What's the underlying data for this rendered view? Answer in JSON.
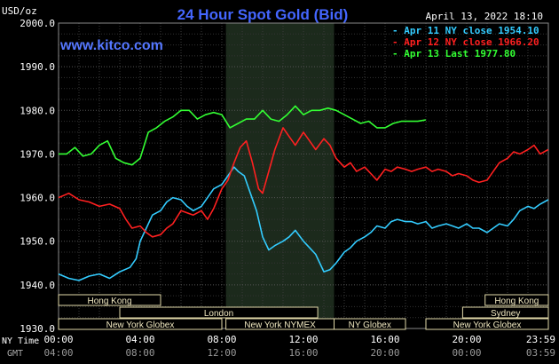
{
  "header": {
    "unit": "USD/oz",
    "title": "24 Hour Spot Gold (Bid)",
    "site": "www.kitco.com",
    "date": "April 13, 2022 18:10"
  },
  "legend": [
    {
      "text": "Apr 11 NY close 1954.10",
      "color": "#33ccff"
    },
    {
      "text": "Apr 12 NY close 1966.20",
      "color": "#ff2020"
    },
    {
      "text": "Apr 13 Last 1977.80",
      "color": "#33ff33"
    }
  ],
  "axis_labels": {
    "ny_time": "NY Time",
    "gmt": "GMT"
  },
  "sessions": [
    {
      "label": "Hong Kong",
      "start_h": 0.0,
      "end_h": 5.0,
      "row": 0
    },
    {
      "label": "London",
      "start_h": 3.0,
      "end_h": 12.7,
      "row": 1
    },
    {
      "label": "New York Globex",
      "start_h": 0.0,
      "end_h": 8.0,
      "row": 2
    },
    {
      "label": "New York NYMEX",
      "start_h": 8.2,
      "end_h": 13.5,
      "row": 2
    },
    {
      "label": "NY Globex",
      "start_h": 13.5,
      "end_h": 17.0,
      "row": 2
    },
    {
      "label": "Hong Kong",
      "start_h": 20.9,
      "end_h": 24.0,
      "row": 0
    },
    {
      "label": "Sydney",
      "start_h": 19.8,
      "end_h": 24.0,
      "row": 1
    },
    {
      "label": "New York Globex",
      "start_h": 18.0,
      "end_h": 24.0,
      "row": 2
    }
  ],
  "chart_data": {
    "type": "line",
    "title": "24 Hour Spot Gold (Bid)",
    "ylabel": "USD/oz",
    "ylim": [
      1930,
      2000
    ],
    "xlim": [
      0,
      24
    ],
    "x_ticks_ny": [
      "00:00",
      "04:00",
      "08:00",
      "12:00",
      "16:00",
      "20:00",
      "23:59"
    ],
    "x_ticks_gmt": [
      "04:00",
      "08:00",
      "12:00",
      "16:00",
      "20:00",
      "00:00",
      "03:59"
    ],
    "y_ticks": [
      "1930.0",
      "1940.0",
      "1950.0",
      "1960.0",
      "1970.0",
      "1980.0",
      "1990.0",
      "2000.0"
    ],
    "y_tick_values": [
      1930,
      1940,
      1950,
      1960,
      1970,
      1980,
      1990,
      2000
    ],
    "grid": true,
    "shaded_region": [
      8.2,
      13.5
    ],
    "series": [
      {
        "name": "Apr 11 NY close 1954.10",
        "color": "#33ccff",
        "x": [
          0,
          0.5,
          1,
          1.5,
          2,
          2.5,
          3,
          3.5,
          3.8,
          4,
          4.3,
          4.6,
          5,
          5.3,
          5.6,
          6,
          6.3,
          6.6,
          7,
          7.3,
          7.6,
          8,
          8.3,
          8.6,
          8.8,
          9.1,
          9.4,
          9.7,
          10,
          10.3,
          10.6,
          11,
          11.3,
          11.6,
          12,
          12.3,
          12.6,
          13,
          13.3,
          13.6,
          14,
          14.3,
          14.6,
          15,
          15.3,
          15.6,
          16,
          16.3,
          16.6,
          17,
          17.3,
          17.6,
          18,
          18.3,
          18.6,
          19,
          19.3,
          19.6,
          20,
          20.3,
          20.6,
          21,
          21.3,
          21.6,
          22,
          22.3,
          22.6,
          23,
          23.3,
          23.6,
          23.99
        ],
        "y": [
          1942.5,
          1941.5,
          1941,
          1942,
          1942.5,
          1941.5,
          1943,
          1944,
          1946,
          1950,
          1953,
          1956,
          1957,
          1959,
          1960,
          1959.5,
          1958,
          1957,
          1958,
          1960,
          1962,
          1963,
          1965,
          1967,
          1966,
          1965,
          1961,
          1957,
          1951,
          1948,
          1949,
          1950,
          1951,
          1952.5,
          1950,
          1948.5,
          1947,
          1943,
          1943.5,
          1945,
          1947.5,
          1948.5,
          1950,
          1951,
          1952,
          1953.5,
          1953,
          1954.5,
          1955,
          1954.5,
          1954.5,
          1954,
          1954.5,
          1953,
          1953.5,
          1954,
          1953.5,
          1953,
          1954,
          1953,
          1953,
          1952,
          1953,
          1954,
          1953.5,
          1955,
          1957,
          1958,
          1957.5,
          1958.5,
          1959.5
        ]
      },
      {
        "name": "Apr 12 NY close 1966.20",
        "color": "#ff2020",
        "x": [
          0,
          0.5,
          1,
          1.5,
          2,
          2.5,
          3,
          3.3,
          3.6,
          4,
          4.3,
          4.6,
          5,
          5.3,
          5.6,
          6,
          6.3,
          6.6,
          7,
          7.3,
          7.6,
          8,
          8.3,
          8.6,
          8.9,
          9.2,
          9.5,
          9.8,
          10,
          10.3,
          10.6,
          11,
          11.3,
          11.6,
          12,
          12.3,
          12.6,
          13,
          13.3,
          13.6,
          14,
          14.3,
          14.6,
          15,
          15.3,
          15.6,
          16,
          16.3,
          16.6,
          17,
          17.3,
          17.6,
          18,
          18.3,
          18.6,
          19,
          19.3,
          19.6,
          20,
          20.3,
          20.6,
          21,
          21.3,
          21.6,
          22,
          22.3,
          22.6,
          23,
          23.3,
          23.6,
          23.99
        ],
        "y": [
          1960,
          1961,
          1959.5,
          1959,
          1958,
          1958.5,
          1957.5,
          1955,
          1953,
          1953.5,
          1952,
          1951,
          1951.5,
          1953,
          1954,
          1957,
          1956.5,
          1956,
          1957,
          1955,
          1957.5,
          1962,
          1964,
          1968,
          1971.5,
          1973,
          1968,
          1962,
          1961,
          1966,
          1971,
          1976,
          1974,
          1972,
          1975,
          1973,
          1971,
          1973.5,
          1972,
          1969,
          1967,
          1968,
          1966,
          1967,
          1965.5,
          1964,
          1966.5,
          1966,
          1967,
          1966.5,
          1966,
          1966.5,
          1967,
          1966,
          1966.5,
          1966,
          1965,
          1965.5,
          1965,
          1964,
          1963.5,
          1964,
          1966,
          1968,
          1969,
          1970.5,
          1970,
          1971,
          1972,
          1970,
          1971
        ]
      },
      {
        "name": "Apr 13 Last 1977.80",
        "color": "#33ff33",
        "x": [
          0,
          0.4,
          0.8,
          1.2,
          1.6,
          2,
          2.4,
          2.8,
          3.2,
          3.6,
          4,
          4.4,
          4.8,
          5.2,
          5.6,
          6,
          6.4,
          6.8,
          7.2,
          7.6,
          8,
          8.4,
          8.8,
          9.2,
          9.6,
          10,
          10.4,
          10.8,
          11.2,
          11.6,
          12,
          12.4,
          12.8,
          13.2,
          13.6,
          14,
          14.4,
          14.8,
          15.2,
          15.6,
          16,
          16.4,
          16.8,
          17,
          17.3,
          17.6,
          17.99
        ],
        "y": [
          1970,
          1970,
          1971.5,
          1969.5,
          1970,
          1972,
          1973,
          1969,
          1968,
          1967.5,
          1969,
          1975,
          1976,
          1977.5,
          1978.5,
          1980,
          1980,
          1978,
          1979,
          1979.5,
          1979,
          1976,
          1977,
          1978,
          1978,
          1980,
          1978,
          1977.5,
          1979,
          1981,
          1979,
          1980,
          1980,
          1980.5,
          1980,
          1979,
          1978,
          1977,
          1977.5,
          1976,
          1976,
          1977,
          1977.5,
          1977.5,
          1977.5,
          1977.5,
          1977.8
        ]
      }
    ]
  }
}
